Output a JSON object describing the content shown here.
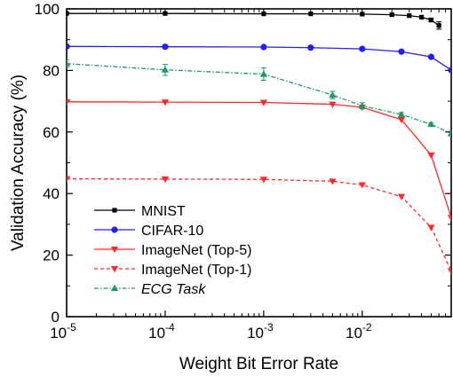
{
  "chart_data": {
    "type": "line",
    "xlabel": "Weight Bit Error Rate",
    "ylabel": "Validation Accuracy (%)",
    "xscale": "log",
    "xlim": [
      1e-05,
      0.08
    ],
    "ylim": [
      0,
      100
    ],
    "grid": false,
    "legend_position": "bottom-left",
    "x_ticks": [
      {
        "value": 1e-05,
        "base": "10",
        "exp": "-5"
      },
      {
        "value": 0.0001,
        "base": "10",
        "exp": "-4"
      },
      {
        "value": 0.001,
        "base": "10",
        "exp": "-3"
      },
      {
        "value": 0.01,
        "base": "10",
        "exp": "-2"
      }
    ],
    "y_ticks": [
      0,
      20,
      40,
      60,
      80,
      100
    ],
    "series": [
      {
        "name": "MNIST",
        "color": "#000000",
        "marker": "square",
        "dash": "solid",
        "italic": false,
        "x": [
          1e-05,
          0.0001,
          0.001,
          0.003,
          0.01,
          0.02,
          0.03,
          0.04,
          0.05,
          0.06
        ],
        "y": [
          98.5,
          98.5,
          98.4,
          98.4,
          98.3,
          98.1,
          97.8,
          97.3,
          96.4,
          94.6
        ],
        "err": [
          0,
          0,
          0,
          0,
          0,
          0,
          0,
          0,
          0.6,
          1.2
        ]
      },
      {
        "name": "CIFAR-10",
        "color": "#1f1fff",
        "marker": "circle",
        "dash": "solid",
        "italic": false,
        "x": [
          1e-05,
          0.0001,
          0.001,
          0.003,
          0.01,
          0.025,
          0.05,
          0.08
        ],
        "y": [
          87.8,
          87.7,
          87.6,
          87.4,
          87.0,
          86.1,
          84.4,
          80.1
        ],
        "err": [
          0,
          0,
          0,
          0,
          0,
          0,
          0,
          0
        ]
      },
      {
        "name": "ImageNet (Top-5)",
        "color": "#ff2a2a",
        "marker": "triangle-down",
        "dash": "solid",
        "italic": false,
        "x": [
          1e-05,
          0.0001,
          0.001,
          0.005,
          0.01,
          0.025,
          0.05,
          0.08
        ],
        "y": [
          69.8,
          69.7,
          69.6,
          69.0,
          68.0,
          64.0,
          52.5,
          32.2
        ],
        "err": [
          0,
          0,
          0,
          0,
          0,
          0,
          0,
          0
        ]
      },
      {
        "name": "ImageNet (Top-1)",
        "color": "#ff2a2a",
        "marker": "triangle-down",
        "dash": "dashed",
        "italic": false,
        "x": [
          1e-05,
          0.0001,
          0.001,
          0.005,
          0.01,
          0.025,
          0.05,
          0.08
        ],
        "y": [
          44.8,
          44.7,
          44.6,
          44.0,
          42.8,
          39.0,
          29.0,
          14.8
        ],
        "err": [
          0,
          0,
          0,
          0,
          0,
          0,
          0,
          0
        ]
      },
      {
        "name": "ECG Task",
        "color": "#1f9a64",
        "marker": "triangle-up",
        "dash": "dash-dot",
        "italic": true,
        "x": [
          1e-05,
          0.0001,
          0.001,
          0.005,
          0.01,
          0.025,
          0.05,
          0.08
        ],
        "y": [
          82.2,
          80.2,
          78.8,
          72.0,
          68.5,
          65.7,
          62.5,
          59.5
        ],
        "err": [
          1.2,
          1.8,
          2.0,
          1.2,
          1.0,
          0.6,
          0.5,
          0.8
        ]
      }
    ]
  }
}
